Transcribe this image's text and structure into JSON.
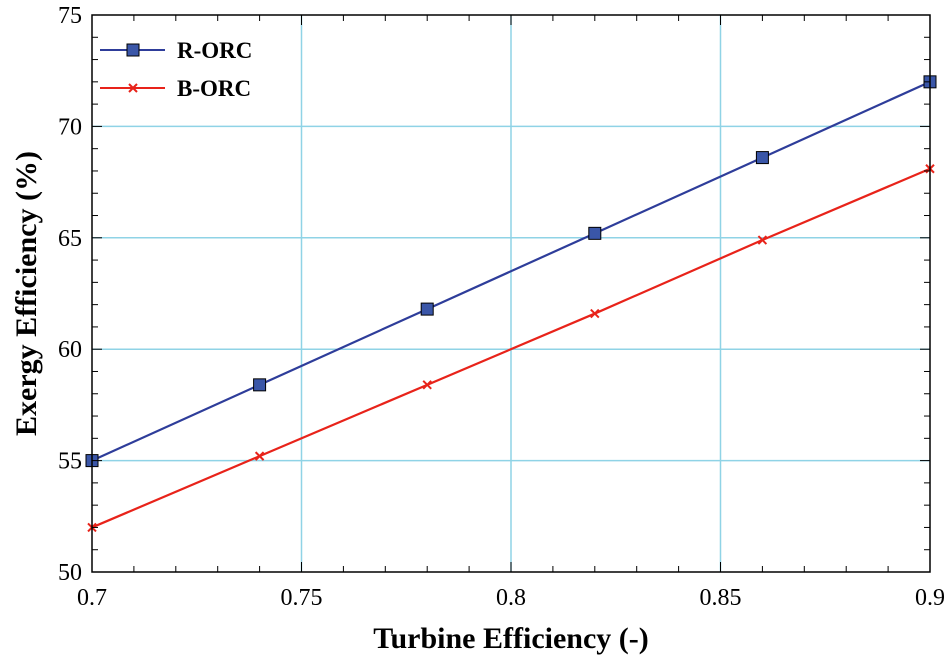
{
  "chart_data": {
    "type": "line",
    "title": "",
    "xlabel": "Turbine Efficiency (-)",
    "ylabel": "Exergy Efficiency (%)",
    "xlim": [
      0.7,
      0.9
    ],
    "ylim": [
      50,
      75
    ],
    "xticks": [
      0.7,
      0.75,
      0.8,
      0.85,
      0.9
    ],
    "xtick_labels": [
      "0.7",
      "0.75",
      "0.8",
      "0.85",
      "0.9"
    ],
    "yticks": [
      50,
      55,
      60,
      65,
      70,
      75
    ],
    "ytick_labels": [
      "50",
      "55",
      "60",
      "65",
      "70",
      "75"
    ],
    "grid": true,
    "legend_position": "top-left",
    "series": [
      {
        "name": "R-ORC",
        "color": "#2e3d9a",
        "marker": "square",
        "marker_color": "#3a56a8",
        "x": [
          0.7,
          0.74,
          0.78,
          0.82,
          0.86,
          0.9
        ],
        "values": [
          55.0,
          58.4,
          61.8,
          65.2,
          68.6,
          72.0
        ]
      },
      {
        "name": "B-ORC",
        "color": "#e8231a",
        "marker": "x",
        "marker_color": "#e8231a",
        "x": [
          0.7,
          0.74,
          0.78,
          0.82,
          0.86,
          0.9
        ],
        "values": [
          52.0,
          55.2,
          58.4,
          61.6,
          64.9,
          68.1
        ]
      }
    ]
  },
  "colors": {
    "grid": "#8fd3e6",
    "axis": "#000000"
  }
}
